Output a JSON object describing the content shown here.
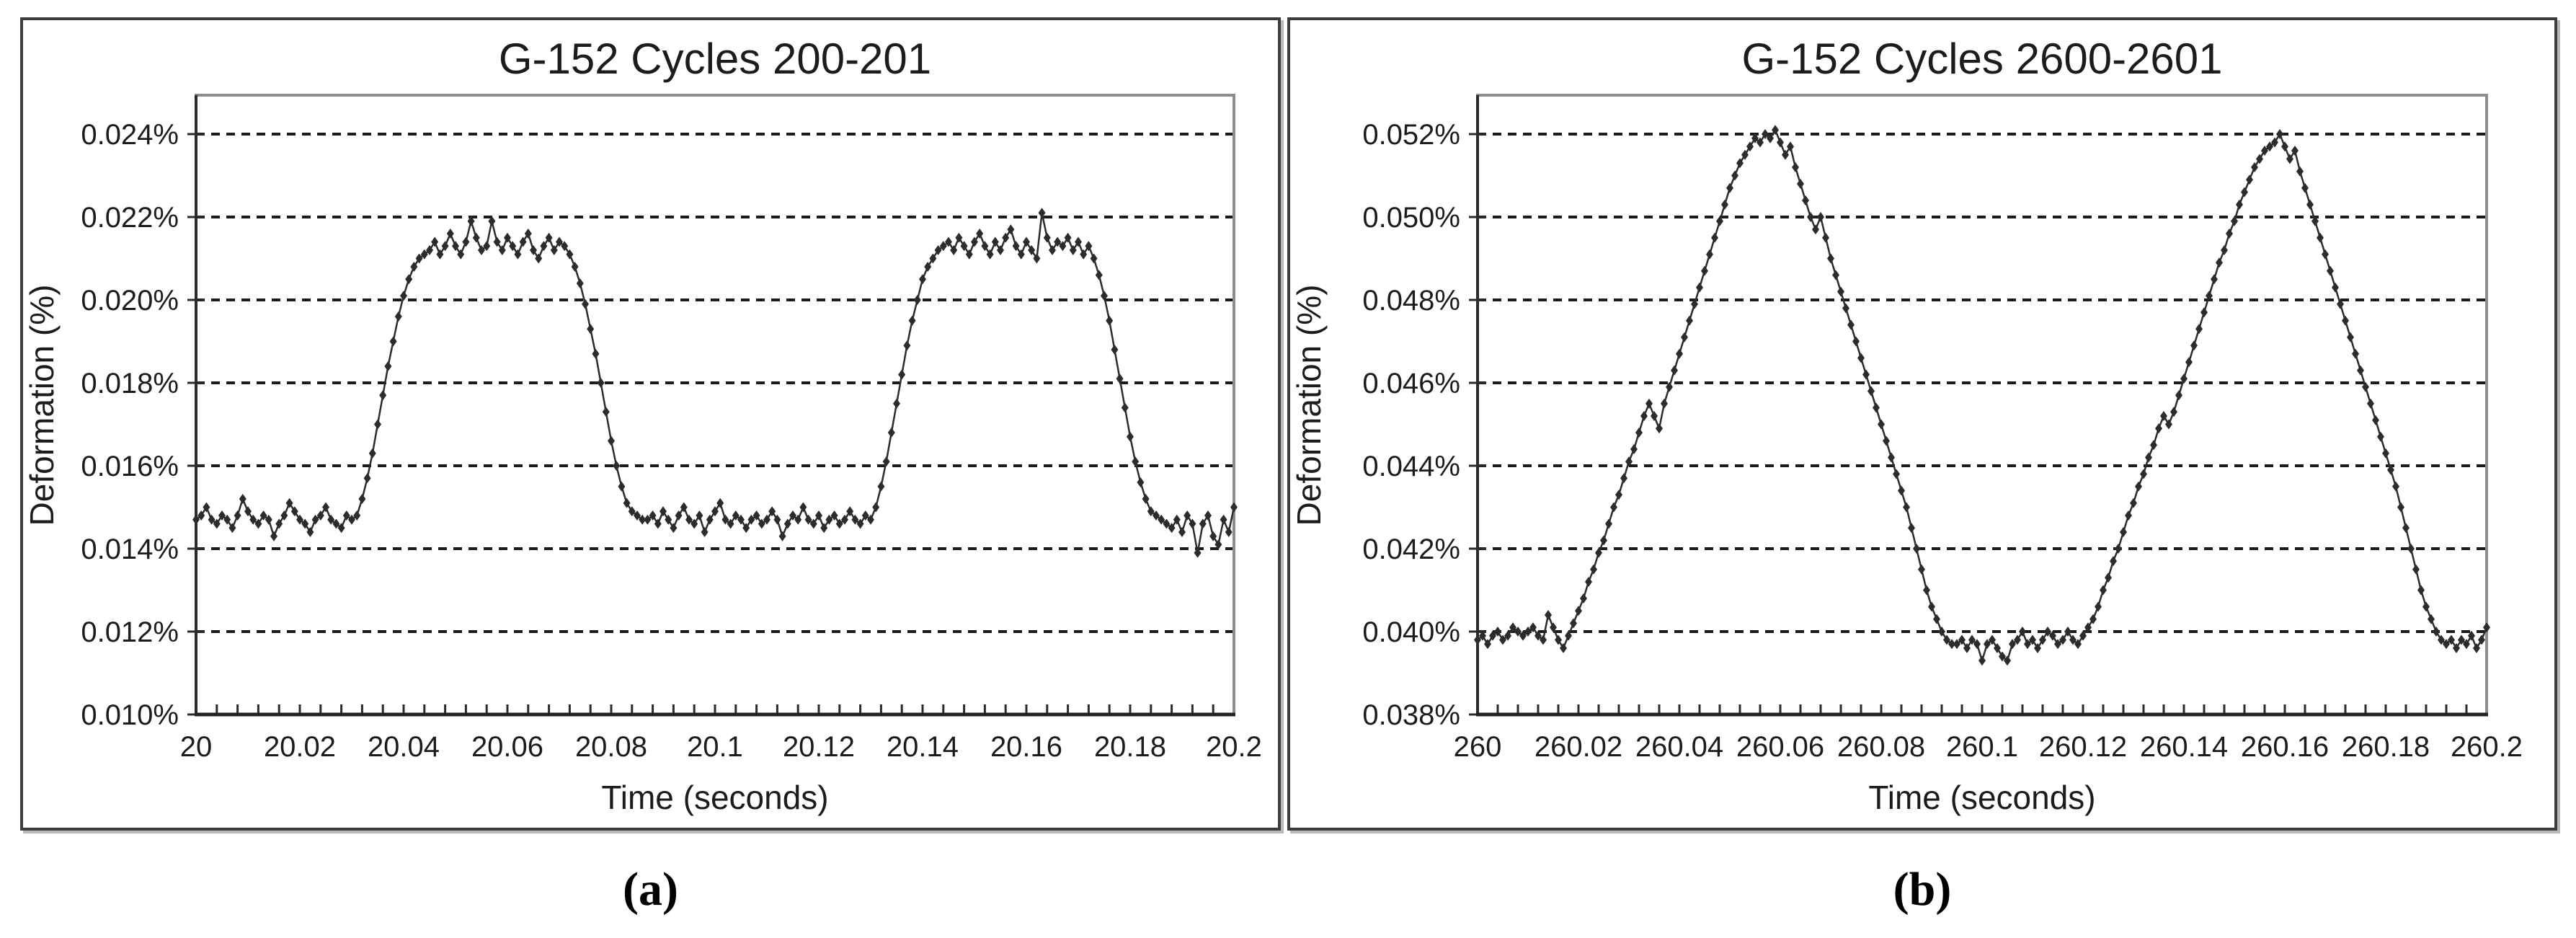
{
  "figure": {
    "background": "#ffffff",
    "captions": {
      "a": "(a)",
      "b": "(b)"
    }
  },
  "chart_data": [
    {
      "type": "line",
      "panel": "a",
      "title": "G-152 Cycles 200-201",
      "xlabel": "Time (seconds)",
      "ylabel": "Deformation (%)",
      "xlim": [
        20,
        20.2
      ],
      "ylim": [
        0.01,
        0.024
      ],
      "grid": "horizontal-dashed",
      "legend": "none",
      "x_minor_tick_step": 0.004,
      "x_ticks": [
        {
          "v": 20,
          "label": "20"
        },
        {
          "v": 20.02,
          "label": "20.02"
        },
        {
          "v": 20.04,
          "label": "20.04"
        },
        {
          "v": 20.06,
          "label": "20.06"
        },
        {
          "v": 20.08,
          "label": "20.08"
        },
        {
          "v": 20.1,
          "label": "20.1"
        },
        {
          "v": 20.12,
          "label": "20.12"
        },
        {
          "v": 20.14,
          "label": "20.14"
        },
        {
          "v": 20.16,
          "label": "20.16"
        },
        {
          "v": 20.18,
          "label": "20.18"
        },
        {
          "v": 20.2,
          "label": "20.2"
        }
      ],
      "y_ticks": [
        {
          "v": 0.01,
          "label": "0.010%"
        },
        {
          "v": 0.012,
          "label": "0.012%"
        },
        {
          "v": 0.014,
          "label": "0.014%"
        },
        {
          "v": 0.016,
          "label": "0.016%"
        },
        {
          "v": 0.018,
          "label": "0.018%"
        },
        {
          "v": 0.02,
          "label": "0.020%"
        },
        {
          "v": 0.022,
          "label": "0.022%"
        },
        {
          "v": 0.024,
          "label": "0.024%"
        }
      ],
      "series": [
        {
          "marker": "diamond",
          "color": "#2c2c2c",
          "x_start": 20.0,
          "x_step": 0.001,
          "y": [
            0.0147,
            0.0148,
            0.015,
            0.0147,
            0.0146,
            0.0148,
            0.0147,
            0.0145,
            0.0148,
            0.0152,
            0.0149,
            0.0147,
            0.0146,
            0.0148,
            0.0147,
            0.0143,
            0.0146,
            0.0148,
            0.0151,
            0.0149,
            0.0147,
            0.0146,
            0.0144,
            0.0147,
            0.0148,
            0.015,
            0.0147,
            0.0146,
            0.0145,
            0.0148,
            0.0147,
            0.0148,
            0.0152,
            0.0157,
            0.0163,
            0.017,
            0.0177,
            0.0184,
            0.019,
            0.0196,
            0.0201,
            0.0205,
            0.0208,
            0.021,
            0.0211,
            0.0212,
            0.0214,
            0.0211,
            0.0213,
            0.0216,
            0.0213,
            0.0211,
            0.0214,
            0.0219,
            0.0215,
            0.0212,
            0.0213,
            0.0219,
            0.0214,
            0.0212,
            0.0215,
            0.0213,
            0.0211,
            0.0214,
            0.0216,
            0.0212,
            0.021,
            0.0213,
            0.0215,
            0.0212,
            0.0214,
            0.0213,
            0.0211,
            0.0208,
            0.0204,
            0.0199,
            0.0193,
            0.0187,
            0.018,
            0.0173,
            0.0166,
            0.016,
            0.0155,
            0.0151,
            0.0149,
            0.0148,
            0.0147,
            0.0147,
            0.0148,
            0.0146,
            0.0149,
            0.0147,
            0.0145,
            0.0148,
            0.015,
            0.0147,
            0.0146,
            0.0148,
            0.0144,
            0.0147,
            0.0149,
            0.0151,
            0.0147,
            0.0146,
            0.0148,
            0.0147,
            0.0145,
            0.0147,
            0.0148,
            0.0146,
            0.0147,
            0.0149,
            0.0147,
            0.0143,
            0.0146,
            0.0148,
            0.0147,
            0.015,
            0.0147,
            0.0146,
            0.0148,
            0.0145,
            0.0147,
            0.0148,
            0.0146,
            0.0147,
            0.0149,
            0.0147,
            0.0146,
            0.0148,
            0.0147,
            0.015,
            0.0155,
            0.0161,
            0.0168,
            0.0175,
            0.0182,
            0.0189,
            0.0195,
            0.02,
            0.0205,
            0.0208,
            0.021,
            0.0212,
            0.0213,
            0.0214,
            0.0212,
            0.0215,
            0.0213,
            0.0211,
            0.0214,
            0.0216,
            0.0213,
            0.0211,
            0.0214,
            0.0212,
            0.0215,
            0.0217,
            0.0213,
            0.0211,
            0.0214,
            0.0212,
            0.021,
            0.0221,
            0.0215,
            0.0212,
            0.0214,
            0.0213,
            0.0215,
            0.0212,
            0.0214,
            0.0211,
            0.0213,
            0.021,
            0.0206,
            0.0201,
            0.0195,
            0.0188,
            0.0181,
            0.0174,
            0.0167,
            0.0161,
            0.0156,
            0.0152,
            0.0149,
            0.0148,
            0.0147,
            0.0146,
            0.0145,
            0.0147,
            0.0144,
            0.0148,
            0.0146,
            0.0139,
            0.0146,
            0.0148,
            0.0143,
            0.0141,
            0.0147,
            0.0144,
            0.015
          ]
        }
      ]
    },
    {
      "type": "line",
      "panel": "b",
      "title": "G-152 Cycles 2600-2601",
      "xlabel": "Time (seconds)",
      "ylabel": "Deformation (%)",
      "xlim": [
        260,
        260.2
      ],
      "ylim": [
        0.038,
        0.052
      ],
      "grid": "horizontal-dashed",
      "legend": "none",
      "x_minor_tick_step": 0.004,
      "x_ticks": [
        {
          "v": 260,
          "label": "260"
        },
        {
          "v": 260.02,
          "label": "260.02"
        },
        {
          "v": 260.04,
          "label": "260.04"
        },
        {
          "v": 260.06,
          "label": "260.06"
        },
        {
          "v": 260.08,
          "label": "260.08"
        },
        {
          "v": 260.1,
          "label": "260.1"
        },
        {
          "v": 260.12,
          "label": "260.12"
        },
        {
          "v": 260.14,
          "label": "260.14"
        },
        {
          "v": 260.16,
          "label": "260.16"
        },
        {
          "v": 260.18,
          "label": "260.18"
        },
        {
          "v": 260.2,
          "label": "260.2"
        }
      ],
      "y_ticks": [
        {
          "v": 0.038,
          "label": "0.038%"
        },
        {
          "v": 0.04,
          "label": "0.040%"
        },
        {
          "v": 0.042,
          "label": "0.042%"
        },
        {
          "v": 0.044,
          "label": "0.044%"
        },
        {
          "v": 0.046,
          "label": "0.046%"
        },
        {
          "v": 0.048,
          "label": "0.048%"
        },
        {
          "v": 0.05,
          "label": "0.050%"
        },
        {
          "v": 0.052,
          "label": "0.052%"
        }
      ],
      "series": [
        {
          "marker": "diamond",
          "color": "#2c2c2c",
          "x_start": 260.0,
          "x_step": 0.001,
          "y": [
            0.0398,
            0.0399,
            0.0397,
            0.0399,
            0.04,
            0.0398,
            0.0399,
            0.0401,
            0.04,
            0.0399,
            0.04,
            0.0401,
            0.0399,
            0.0398,
            0.0404,
            0.0401,
            0.0398,
            0.0396,
            0.0399,
            0.0402,
            0.0405,
            0.0408,
            0.0412,
            0.0415,
            0.0419,
            0.0422,
            0.0426,
            0.043,
            0.0433,
            0.0437,
            0.0441,
            0.0444,
            0.0448,
            0.0452,
            0.0455,
            0.0452,
            0.0449,
            0.0455,
            0.0459,
            0.0463,
            0.0467,
            0.0471,
            0.0475,
            0.0479,
            0.0483,
            0.0487,
            0.0491,
            0.0495,
            0.0499,
            0.0503,
            0.0507,
            0.051,
            0.0513,
            0.0515,
            0.0517,
            0.0519,
            0.0518,
            0.052,
            0.0519,
            0.0521,
            0.0518,
            0.0515,
            0.0517,
            0.0512,
            0.0508,
            0.0504,
            0.05,
            0.0497,
            0.05,
            0.0495,
            0.049,
            0.0486,
            0.0482,
            0.0478,
            0.0474,
            0.047,
            0.0466,
            0.0462,
            0.0458,
            0.0454,
            0.045,
            0.0446,
            0.0442,
            0.0438,
            0.0434,
            0.043,
            0.0425,
            0.042,
            0.0415,
            0.041,
            0.0406,
            0.0403,
            0.04,
            0.0398,
            0.0397,
            0.0397,
            0.0398,
            0.0396,
            0.0398,
            0.0397,
            0.0393,
            0.0397,
            0.0398,
            0.0396,
            0.0394,
            0.0393,
            0.0397,
            0.0398,
            0.04,
            0.0397,
            0.0398,
            0.0396,
            0.0398,
            0.04,
            0.0399,
            0.0397,
            0.0398,
            0.04,
            0.0398,
            0.0397,
            0.0399,
            0.0401,
            0.0403,
            0.0406,
            0.041,
            0.0413,
            0.0417,
            0.042,
            0.0424,
            0.0428,
            0.0431,
            0.0435,
            0.0438,
            0.0442,
            0.0445,
            0.0449,
            0.0452,
            0.045,
            0.0453,
            0.0457,
            0.0461,
            0.0465,
            0.0469,
            0.0473,
            0.0477,
            0.0481,
            0.0485,
            0.0489,
            0.0492,
            0.0496,
            0.0499,
            0.0503,
            0.0506,
            0.0509,
            0.0512,
            0.0514,
            0.0516,
            0.0517,
            0.0518,
            0.052,
            0.0517,
            0.0514,
            0.0516,
            0.0511,
            0.0507,
            0.0503,
            0.0499,
            0.0495,
            0.0491,
            0.0487,
            0.0483,
            0.0479,
            0.0475,
            0.0471,
            0.0467,
            0.0463,
            0.0459,
            0.0455,
            0.0451,
            0.0447,
            0.0443,
            0.0439,
            0.0435,
            0.043,
            0.0425,
            0.042,
            0.0415,
            0.041,
            0.0406,
            0.0403,
            0.04,
            0.0398,
            0.0397,
            0.0398,
            0.0396,
            0.0398,
            0.0397,
            0.0399,
            0.0396,
            0.0398,
            0.0401
          ]
        }
      ]
    }
  ]
}
